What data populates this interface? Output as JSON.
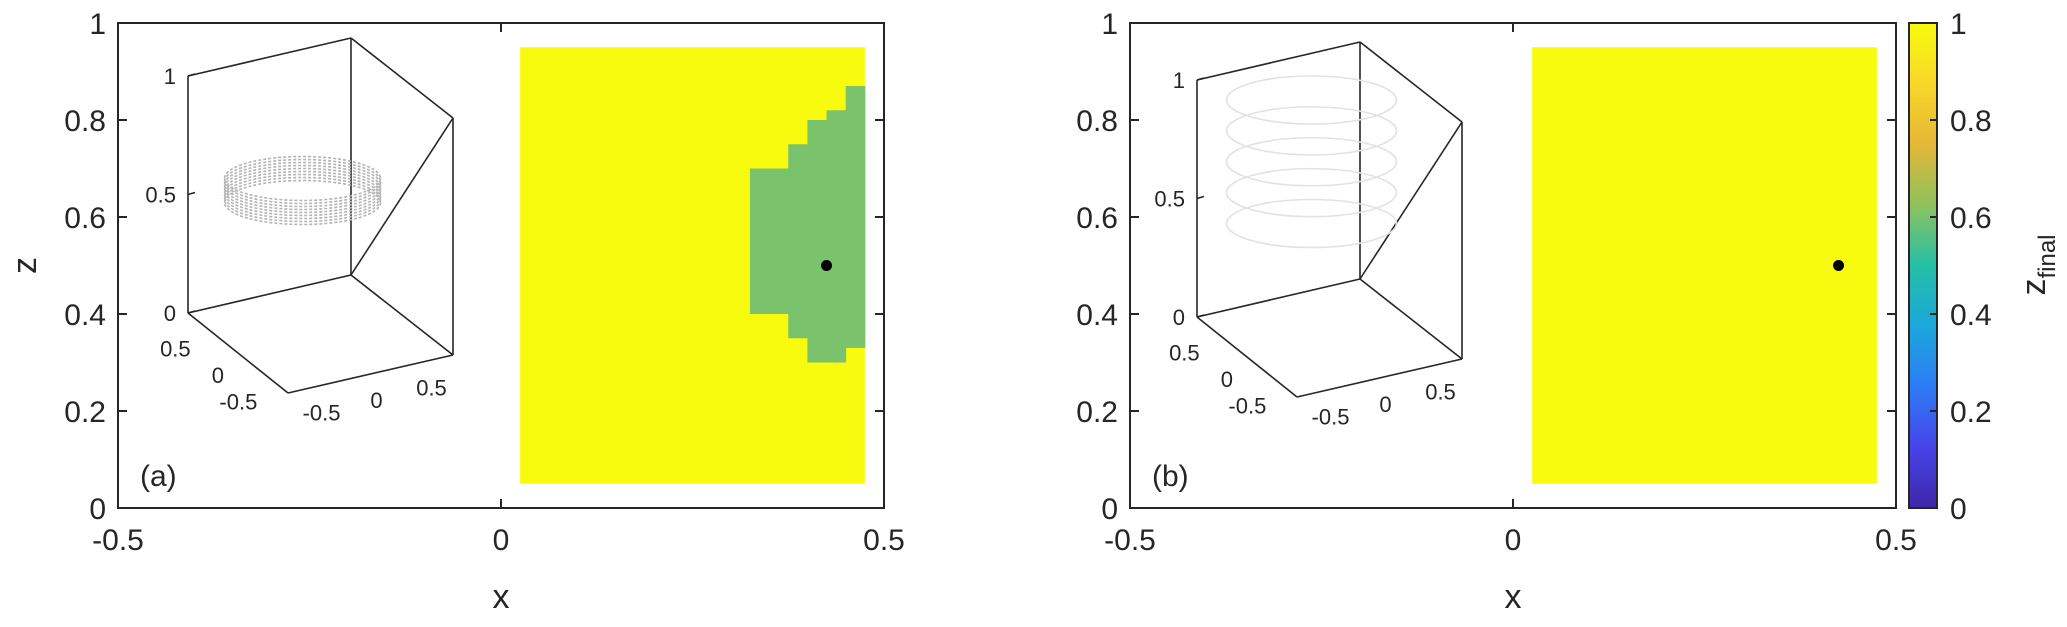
{
  "chart_data": [
    {
      "type": "heatmap",
      "panel_label": "(a)",
      "xlabel": "x",
      "ylabel": "z",
      "xlim": [
        -0.5,
        0.5
      ],
      "ylim": [
        0,
        1
      ],
      "x_ticks": [
        "-0.5",
        "0",
        "0.5"
      ],
      "y_ticks": [
        "0",
        "0.2",
        "0.4",
        "0.6",
        "0.8",
        "1"
      ],
      "grid_x_range": [
        0.025,
        0.475
      ],
      "grid_z_range": [
        0.05,
        0.95
      ],
      "background_value": 1,
      "region_value": 0.6,
      "region_columns": [
        {
          "x_range": [
            0.325,
            0.375
          ],
          "z_range": [
            0.4,
            0.7
          ]
        },
        {
          "x_range": [
            0.375,
            0.4
          ],
          "z_range": [
            0.35,
            0.75
          ]
        },
        {
          "x_range": [
            0.4,
            0.425
          ],
          "z_range": [
            0.3,
            0.8
          ]
        },
        {
          "x_range": [
            0.425,
            0.45
          ],
          "z_range": [
            0.3,
            0.82
          ]
        },
        {
          "x_range": [
            0.45,
            0.475
          ],
          "z_range": [
            0.33,
            0.87
          ]
        }
      ],
      "marker": {
        "x": 0.425,
        "z": 0.5
      },
      "inset": {
        "z_ticks": [
          "0",
          "0.5",
          "1"
        ],
        "x_ticks": [
          "-0.5",
          "0",
          "0.5"
        ],
        "y_ticks": [
          "0.5",
          "0",
          "-0.5"
        ],
        "trajectory": "ring",
        "trajectory_color": "#b4b4b4"
      }
    },
    {
      "type": "heatmap",
      "panel_label": "(b)",
      "xlabel": "x",
      "ylabel": "",
      "xlim": [
        -0.5,
        0.5
      ],
      "ylim": [
        0,
        1
      ],
      "x_ticks": [
        "-0.5",
        "0",
        "0.5"
      ],
      "y_ticks": [
        "0",
        "0.2",
        "0.4",
        "0.6",
        "0.8",
        "1"
      ],
      "grid_x_range": [
        0.025,
        0.475
      ],
      "grid_z_range": [
        0.05,
        0.95
      ],
      "background_value": 1,
      "region_columns": [],
      "marker": {
        "x": 0.425,
        "z": 0.5
      },
      "inset": {
        "z_ticks": [
          "0",
          "0.5",
          "1"
        ],
        "x_ticks": [
          "-0.5",
          "0",
          "0.5"
        ],
        "y_ticks": [
          "0.5",
          "0",
          "-0.5"
        ],
        "trajectory": "helix",
        "trajectory_color": "#e2e2e2"
      }
    }
  ],
  "colorbar": {
    "label_main": "z",
    "label_sub": "final",
    "range": [
      0,
      1
    ],
    "ticks": [
      "0",
      "0.2",
      "0.4",
      "0.6",
      "0.8",
      "1"
    ],
    "colormap": [
      "#3e26a8",
      "#4744e8",
      "#2d7cf6",
      "#1ca7da",
      "#24c0a6",
      "#8fc25e",
      "#e5b737",
      "#f9d729",
      "#f9fb0e"
    ]
  }
}
